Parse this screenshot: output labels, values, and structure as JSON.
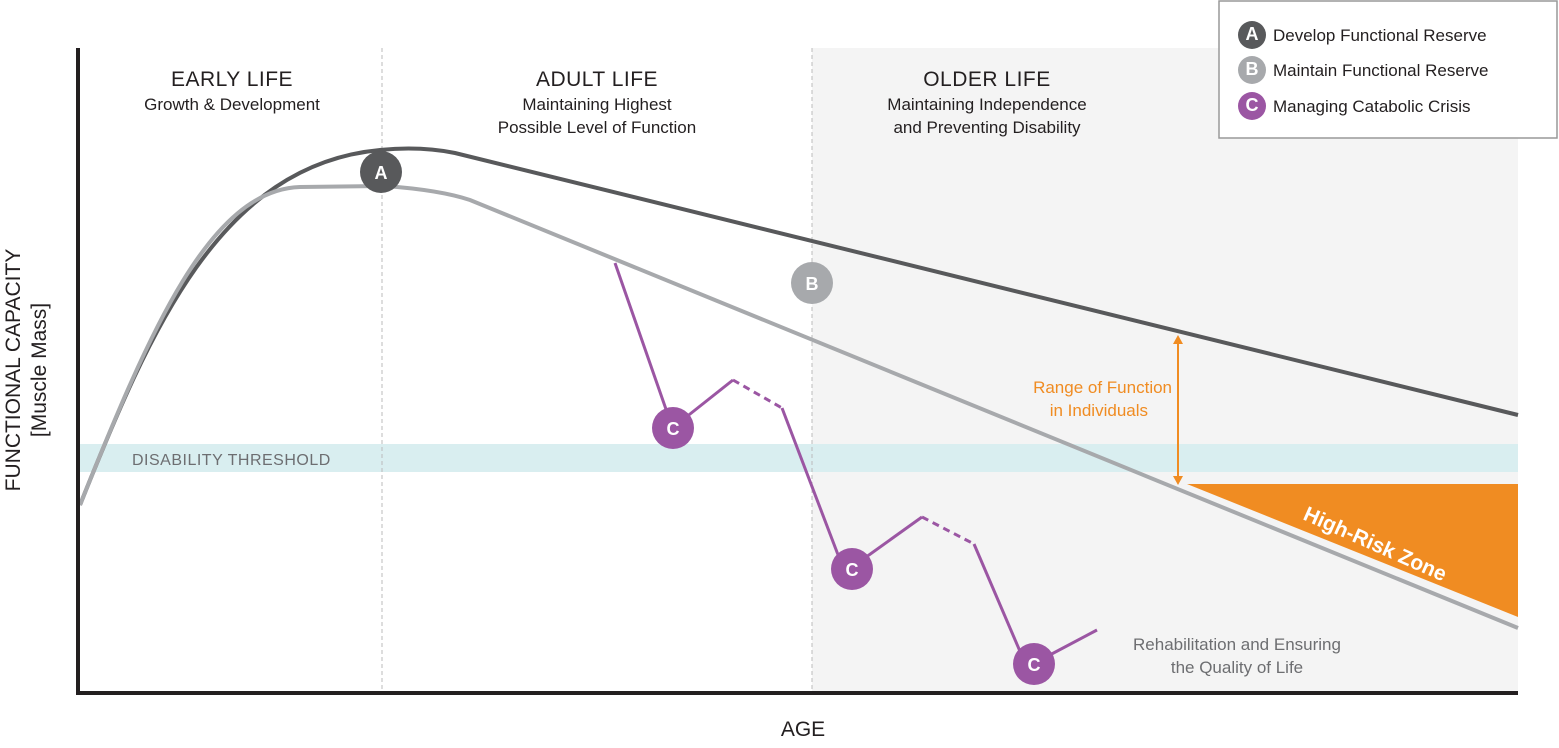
{
  "diagram": {
    "y_axis_label_line1": "FUNCTIONAL CAPACITY",
    "y_axis_label_line2": "[Muscle Mass]",
    "x_axis_label": "AGE",
    "phases": [
      {
        "title": "EARLY LIFE",
        "line1": "Growth & Development",
        "line2": ""
      },
      {
        "title": "ADULT LIFE",
        "line1": "Maintaining Highest",
        "line2": "Possible Level of Function"
      },
      {
        "title": "OLDER LIFE",
        "line1": "Maintaining Independence",
        "line2": "and Preventing Disability"
      }
    ],
    "disability_threshold": "DISABILITY THRESHOLD",
    "range_label_line1": "Range of Function",
    "range_label_line2": "in Individuals",
    "high_risk_zone": "High-Risk Zone",
    "rehab_line1": "Rehabilitation and Ensuring",
    "rehab_line2": "the Quality of Life",
    "markers": {
      "a": "A",
      "b": "B",
      "c": "C"
    }
  },
  "legend": [
    {
      "letter": "A",
      "label": "Develop Functional Reserve",
      "color": "#58595b"
    },
    {
      "letter": "B",
      "label": "Maintain Functional Reserve",
      "color": "#a7a9ac"
    },
    {
      "letter": "C",
      "label": "Managing Catabolic Crisis",
      "color": "#9b56a3"
    }
  ],
  "colors": {
    "upper_curve": "#58595b",
    "lower_curve": "#a7a9ac",
    "crisis": "#9b56a3",
    "high_risk": "#f08c22",
    "threshold_band": "#d9eef0",
    "older_life_shade": "#f4f4f4"
  }
}
